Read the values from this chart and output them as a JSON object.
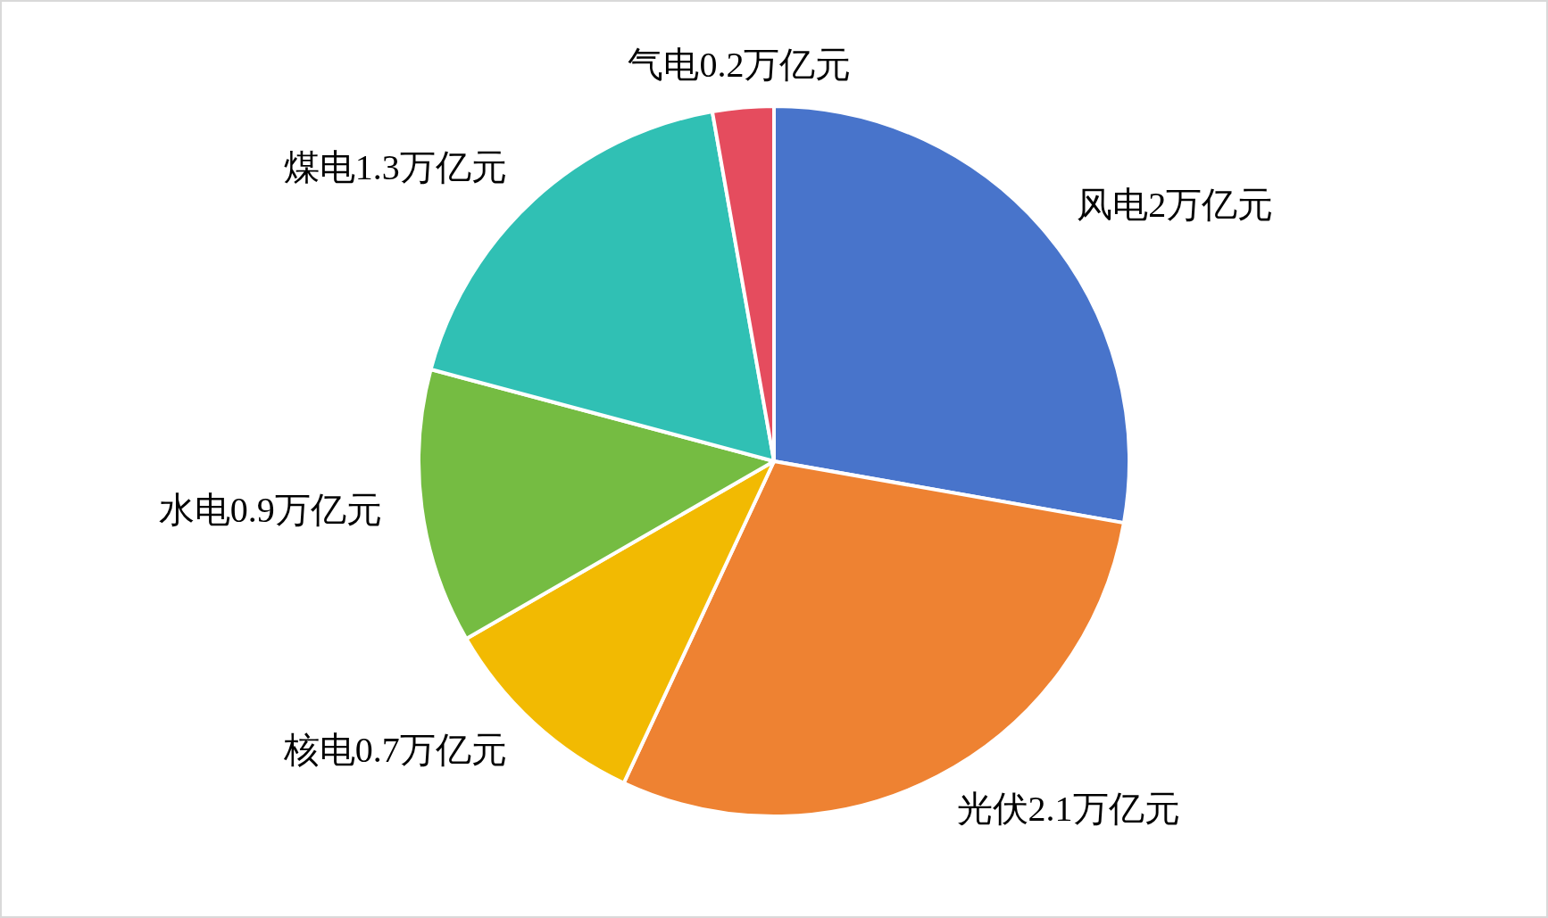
{
  "chart_data": {
    "type": "pie",
    "categories": [
      "风电",
      "光伏",
      "核电",
      "水电",
      "煤电",
      "气电"
    ],
    "values": [
      2,
      2.1,
      0.7,
      0.9,
      1.3,
      0.2
    ],
    "value_labels": [
      "2万亿元",
      "2.1万亿元",
      "0.7万亿元",
      "0.9万亿元",
      "1.3万亿元",
      "0.2万亿元"
    ],
    "colors": [
      "#4874cb",
      "#ee8232",
      "#f2ba02",
      "#75bc42",
      "#30c0b4",
      "#e54c5e"
    ],
    "legend": false
  }
}
